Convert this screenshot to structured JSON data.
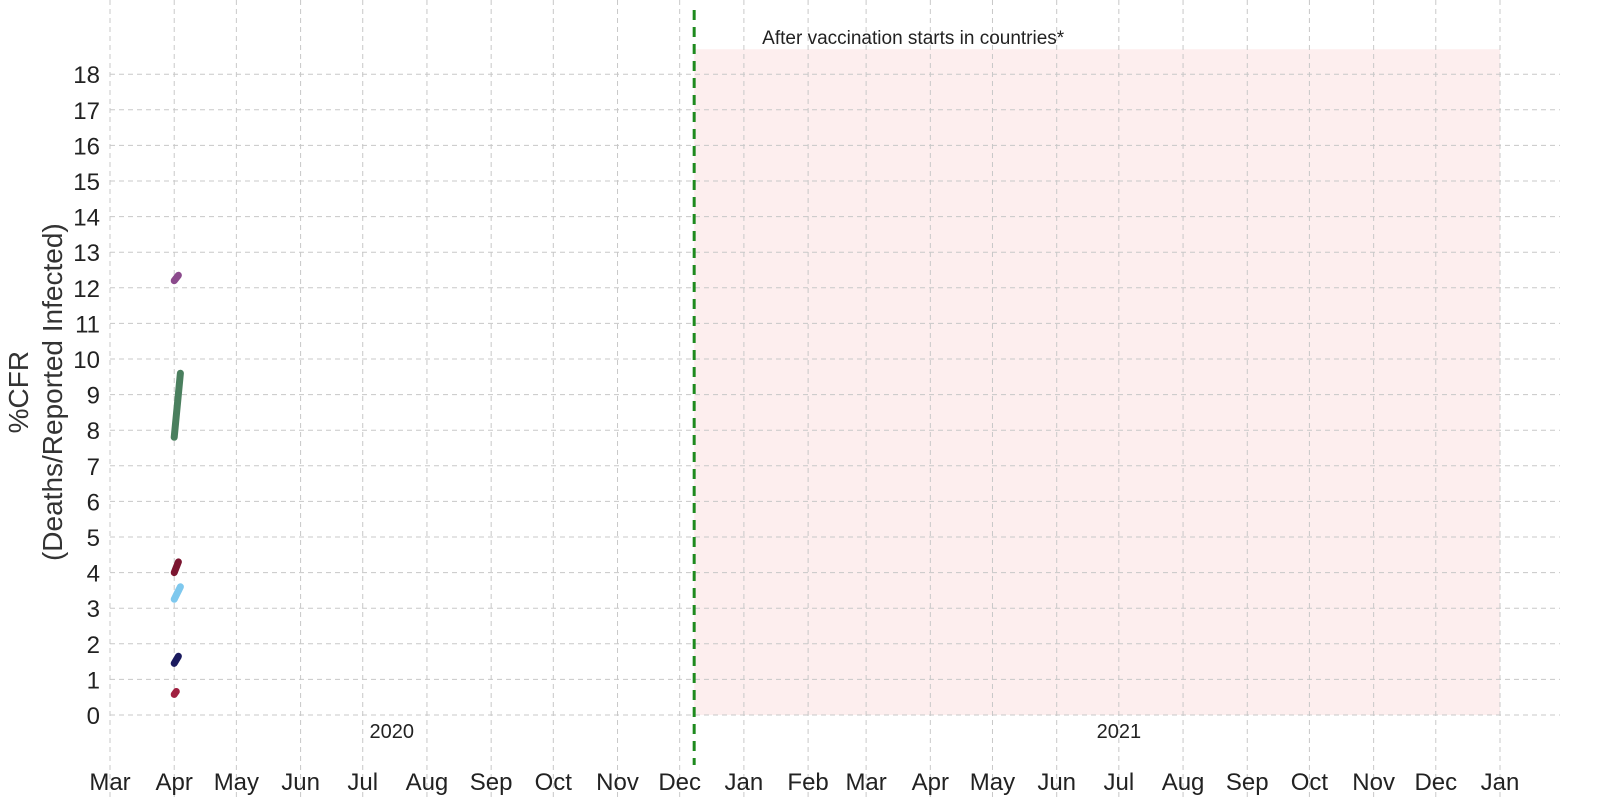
{
  "chart_data": {
    "type": "line",
    "title": "",
    "xlabel": "",
    "ylabel_lines": [
      "%CFR",
      "(Deaths/Reported Infected)"
    ],
    "x_tick_labels": [
      "Mar",
      "Apr",
      "May",
      "Jun",
      "Jul",
      "Aug",
      "Sep",
      "Oct",
      "Nov",
      "Dec",
      "Jan",
      "Feb",
      "Mar",
      "Apr",
      "May",
      "Jun",
      "Jul",
      "Aug",
      "Sep",
      "Oct",
      "Nov",
      "Dec",
      "Jan"
    ],
    "x_range": [
      "2020-03-01",
      "2022-01-01"
    ],
    "year_labels": [
      {
        "text": "2020",
        "at": "2020-07-15"
      },
      {
        "text": "2021",
        "at": "2021-07-01"
      }
    ],
    "y_ticks": [
      0,
      1,
      2,
      3,
      4,
      5,
      6,
      7,
      8,
      9,
      10,
      11,
      12,
      13,
      14,
      15,
      16,
      17,
      18
    ],
    "ylim": [
      0,
      18.7
    ],
    "grid": true,
    "vaccination_line_date": "2020-12-08",
    "shaded_region": {
      "from": "2020-12-08",
      "to": "2022-01-01",
      "color": "#fdeeee"
    },
    "annotation": "After vaccination starts in countries*",
    "series": [
      {
        "color": "#8b4a8c",
        "points": [
          [
            "2020-04-01",
            12.2
          ],
          [
            "2020-04-03",
            12.35
          ]
        ]
      },
      {
        "color": "#4a7f5e",
        "points": [
          [
            "2020-04-01",
            7.8
          ],
          [
            "2020-04-04",
            9.6
          ]
        ]
      },
      {
        "color": "#7b1530",
        "points": [
          [
            "2020-04-01",
            4.0
          ],
          [
            "2020-04-03",
            4.3
          ]
        ]
      },
      {
        "color": "#7ec8ee",
        "points": [
          [
            "2020-04-01",
            3.25
          ],
          [
            "2020-04-04",
            3.6
          ]
        ]
      },
      {
        "color": "#1a1a5e",
        "points": [
          [
            "2020-04-01",
            1.45
          ],
          [
            "2020-04-03",
            1.65
          ]
        ]
      },
      {
        "color": "#a02040",
        "points": [
          [
            "2020-04-01",
            0.58
          ],
          [
            "2020-04-02",
            0.66
          ]
        ]
      }
    ]
  }
}
